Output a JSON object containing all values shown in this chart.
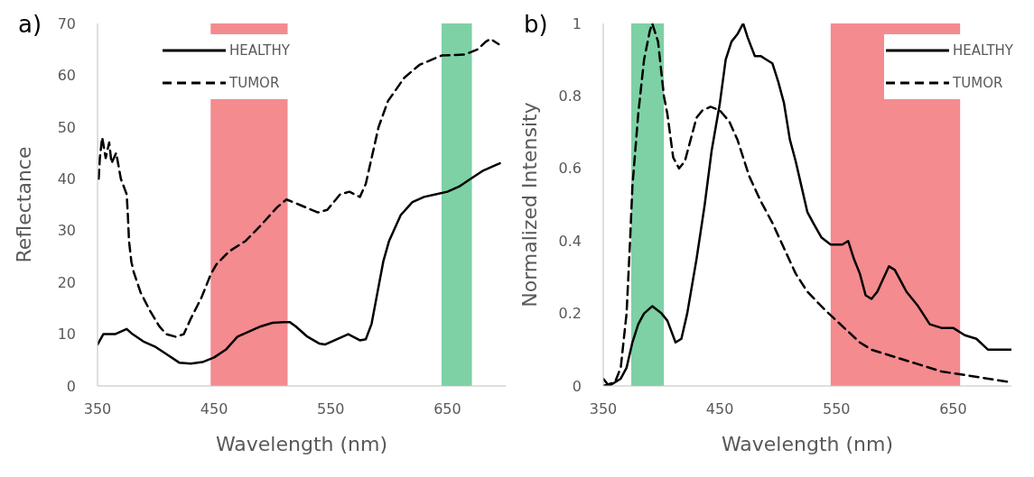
{
  "chart_data": [
    {
      "type": "line",
      "title": "a)",
      "xlabel": "Wavelength (nm)",
      "ylabel": "Reflectance",
      "xlim": [
        350,
        700
      ],
      "xticks": [
        350,
        450,
        550,
        650
      ],
      "ylim": [
        0,
        70
      ],
      "yticks": [
        0,
        10,
        20,
        30,
        40,
        50,
        60,
        70
      ],
      "grid": false,
      "legend": "top",
      "marker": "none",
      "bands": [
        {
          "axis": "x",
          "from": 447,
          "to": 513,
          "color": "#f1777b"
        },
        {
          "axis": "x",
          "from": 645,
          "to": 671,
          "color": "#66c994"
        }
      ],
      "series": [
        {
          "name": "HEALTHY",
          "color": "#000000",
          "line_style": "solid",
          "x": [
            350,
            355,
            365,
            375,
            380,
            390,
            400,
            410,
            420,
            430,
            440,
            450,
            460,
            470,
            480,
            490,
            500,
            510,
            515,
            520,
            530,
            540,
            545,
            555,
            565,
            575,
            580,
            585,
            590,
            595,
            600,
            610,
            620,
            630,
            640,
            650,
            660,
            670,
            680,
            690,
            695
          ],
          "values": [
            8,
            10,
            10,
            11,
            10,
            8.5,
            7.5,
            6,
            4.5,
            4.3,
            4.6,
            5.5,
            7,
            9.5,
            10.5,
            11.5,
            12.2,
            12.3,
            12.3,
            11.5,
            9.5,
            8.2,
            8,
            9,
            10,
            8.8,
            9,
            12,
            18,
            24,
            28,
            33,
            35.5,
            36.5,
            37,
            37.5,
            38.5,
            40,
            41.5,
            42.5,
            43
          ]
        },
        {
          "name": "TUMOR",
          "color": "#000000",
          "line_style": "dashed",
          "x": [
            351,
            352,
            354,
            357,
            360,
            362,
            366,
            370,
            375,
            376,
            377,
            379,
            381,
            387,
            395,
            403,
            409,
            417,
            424,
            430,
            439,
            447,
            452,
            463,
            477,
            490,
            504,
            512,
            523,
            539,
            547,
            558,
            566,
            575,
            580,
            586,
            591,
            599,
            613,
            626,
            645,
            665,
            676,
            683,
            687,
            694
          ],
          "values": [
            40,
            44,
            48,
            44,
            47,
            43,
            45,
            40,
            37,
            33,
            28,
            24,
            22,
            18,
            14.5,
            11.5,
            10,
            9.5,
            10,
            13,
            17,
            21.5,
            23.5,
            26,
            28,
            31,
            34.5,
            36,
            35,
            33.5,
            34,
            37,
            37.5,
            36.5,
            39,
            45,
            50,
            55,
            59.5,
            62,
            63.8,
            64,
            65,
            66.5,
            67,
            66
          ]
        }
      ]
    },
    {
      "type": "line",
      "title": "b)",
      "xlabel": "Wavelength (nm)",
      "ylabel": "Normalized Intensity",
      "xlim": [
        350,
        700
      ],
      "xticks": [
        350,
        450,
        550,
        650
      ],
      "ylim": [
        0,
        1
      ],
      "yticks": [
        0,
        0.2,
        0.4,
        0.6,
        0.8,
        1
      ],
      "grid": false,
      "legend": "top right",
      "marker": "none",
      "bands": [
        {
          "axis": "x",
          "from": 374,
          "to": 402,
          "color": "#66c994"
        },
        {
          "axis": "x",
          "from": 545,
          "to": 656,
          "color": "#f1777b"
        }
      ],
      "series": [
        {
          "name": "HEALTHY",
          "color": "#000000",
          "line_style": "solid",
          "x": [
            350,
            355,
            365,
            370,
            375,
            380,
            385,
            392,
            400,
            405,
            412,
            417,
            422,
            430,
            437,
            443,
            450,
            455,
            460,
            465,
            470,
            474,
            480,
            485,
            490,
            495,
            500,
            505,
            510,
            515,
            520,
            525,
            530,
            537,
            545,
            555,
            560,
            565,
            570,
            575,
            580,
            585,
            595,
            600,
            605,
            610,
            620,
            630,
            640,
            650,
            660,
            670,
            680,
            690,
            700
          ],
          "values": [
            0.02,
            0,
            0.02,
            0.05,
            0.12,
            0.17,
            0.2,
            0.22,
            0.2,
            0.18,
            0.12,
            0.13,
            0.2,
            0.35,
            0.5,
            0.65,
            0.78,
            0.9,
            0.95,
            0.97,
            1,
            0.96,
            0.91,
            0.91,
            0.9,
            0.89,
            0.84,
            0.78,
            0.68,
            0.62,
            0.55,
            0.48,
            0.45,
            0.41,
            0.39,
            0.39,
            0.4,
            0.35,
            0.31,
            0.25,
            0.24,
            0.26,
            0.33,
            0.32,
            0.29,
            0.26,
            0.22,
            0.17,
            0.16,
            0.16,
            0.14,
            0.13,
            0.1,
            0.1,
            0.1
          ]
        },
        {
          "name": "TUMOR",
          "color": "#000000",
          "line_style": "dashed",
          "x": [
            350,
            360,
            365,
            370,
            373,
            375,
            380,
            385,
            390,
            392,
            397,
            402,
            405,
            410,
            415,
            420,
            425,
            430,
            435,
            442,
            450,
            458,
            465,
            475,
            485,
            495,
            505,
            515,
            525,
            540,
            550,
            560,
            570,
            580,
            600,
            620,
            640,
            660,
            680,
            700
          ],
          "values": [
            0,
            0.01,
            0.05,
            0.2,
            0.4,
            0.55,
            0.75,
            0.9,
            0.98,
            1,
            0.95,
            0.8,
            0.75,
            0.63,
            0.6,
            0.62,
            0.68,
            0.74,
            0.76,
            0.77,
            0.76,
            0.73,
            0.68,
            0.58,
            0.51,
            0.45,
            0.38,
            0.31,
            0.26,
            0.21,
            0.18,
            0.15,
            0.12,
            0.1,
            0.08,
            0.06,
            0.04,
            0.03,
            0.02,
            0.01
          ]
        }
      ]
    }
  ]
}
